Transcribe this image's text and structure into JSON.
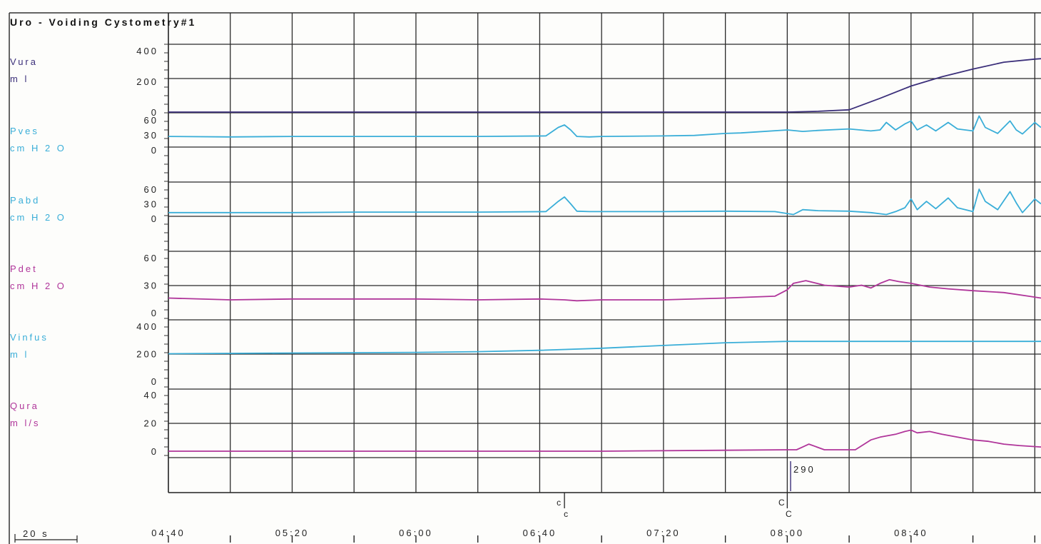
{
  "chart_data": {
    "type": "line",
    "title": "Uro - Voiding Cystometry#1",
    "time_scale_label": "20 s",
    "x_ticks": [
      "04:40",
      "05:20",
      "06:00",
      "06:40",
      "07:20",
      "08:00",
      "08:40"
    ],
    "xlim": [
      "04:40",
      "09:22"
    ],
    "grid": true,
    "markers": [
      {
        "time": "06:48",
        "labels": [
          "c",
          "c"
        ]
      },
      {
        "time": "08:00",
        "labels": [
          "C",
          "C"
        ]
      }
    ],
    "annotations": [
      {
        "time": "08:02",
        "text": "290"
      }
    ],
    "channels": [
      {
        "name": "Vura",
        "unit": "m l",
        "color": "#3b2f7a",
        "ylim": [
          0,
          400
        ],
        "ticks": [
          "400",
          "200",
          "0"
        ],
        "t": [
          "04:40",
          "08:00",
          "08:10",
          "08:20",
          "08:30",
          "08:40",
          "08:50",
          "09:00",
          "09:10",
          "09:20",
          "09:22"
        ],
        "values": [
          0,
          0,
          5,
          15,
          90,
          170,
          230,
          280,
          325,
          345,
          348
        ]
      },
      {
        "name": "Pves",
        "unit": "cm H 2 O",
        "color": "#3aaed8",
        "ylim": [
          0,
          60
        ],
        "ticks": [
          "60",
          "30",
          "0"
        ],
        "t": [
          "04:40",
          "05:00",
          "05:20",
          "05:40",
          "06:00",
          "06:20",
          "06:42",
          "06:46",
          "06:48",
          "06:50",
          "06:52",
          "06:56",
          "07:00",
          "07:20",
          "07:30",
          "07:40",
          "07:45",
          "07:50",
          "08:00",
          "08:05",
          "08:10",
          "08:20",
          "08:27",
          "08:30",
          "08:32",
          "08:35",
          "08:38",
          "08:40",
          "08:42",
          "08:45",
          "08:48",
          "08:52",
          "08:55",
          "09:00",
          "09:02",
          "09:04",
          "09:08",
          "09:12",
          "09:14",
          "09:16",
          "09:20",
          "09:22"
        ],
        "values": [
          27,
          26,
          27,
          27,
          27,
          27,
          28,
          45,
          50,
          40,
          27,
          26,
          27,
          28,
          29,
          33,
          34,
          36,
          40,
          37,
          39,
          42,
          38,
          40,
          55,
          40,
          52,
          58,
          40,
          50,
          38,
          55,
          42,
          38,
          68,
          45,
          33,
          58,
          40,
          32,
          55,
          45
        ]
      },
      {
        "name": "Pabd",
        "unit": "cm H 2 O",
        "color": "#3aaed8",
        "ylim": [
          0,
          60
        ],
        "ticks": [
          "60",
          "30",
          "0"
        ],
        "t": [
          "04:40",
          "05:00",
          "05:20",
          "05:40",
          "06:00",
          "06:20",
          "06:42",
          "06:46",
          "06:48",
          "06:50",
          "06:52",
          "06:56",
          "07:00",
          "07:20",
          "07:40",
          "07:56",
          "08:02",
          "08:05",
          "08:10",
          "08:20",
          "08:27",
          "08:32",
          "08:35",
          "08:38",
          "08:40",
          "08:42",
          "08:45",
          "08:48",
          "08:52",
          "08:55",
          "09:00",
          "09:02",
          "09:04",
          "09:08",
          "09:12",
          "09:14",
          "09:16",
          "09:20",
          "09:22"
        ],
        "values": [
          12,
          12,
          12,
          13,
          13,
          13,
          14,
          35,
          44,
          30,
          15,
          14,
          14,
          14,
          15,
          14,
          8,
          18,
          16,
          15,
          12,
          8,
          14,
          22,
          40,
          18,
          35,
          20,
          42,
          22,
          14,
          60,
          35,
          18,
          55,
          32,
          12,
          40,
          30
        ]
      },
      {
        "name": "Pdet",
        "unit": "cm H 2 O",
        "color": "#b0359a",
        "ylim": [
          0,
          60
        ],
        "ticks": [
          "60",
          "30",
          "0"
        ],
        "t": [
          "04:40",
          "05:00",
          "05:20",
          "05:40",
          "06:00",
          "06:20",
          "06:40",
          "06:48",
          "06:52",
          "07:00",
          "07:20",
          "07:40",
          "07:56",
          "08:00",
          "08:02",
          "08:06",
          "08:12",
          "08:20",
          "08:24",
          "08:27",
          "08:30",
          "08:33",
          "08:36",
          "08:40",
          "08:46",
          "08:52",
          "09:00",
          "09:10",
          "09:18",
          "09:22"
        ],
        "values": [
          16,
          14,
          15,
          15,
          15,
          14,
          15,
          14,
          13,
          14,
          14,
          16,
          18,
          25,
          32,
          35,
          30,
          28,
          30,
          27,
          32,
          36,
          34,
          32,
          28,
          26,
          24,
          22,
          18,
          16
        ]
      },
      {
        "name": "Vinfus",
        "unit": "m l",
        "color": "#3aaed8",
        "ylim": [
          0,
          400
        ],
        "ticks": [
          "400",
          "200",
          "0"
        ],
        "t": [
          "04:40",
          "05:20",
          "06:00",
          "06:20",
          "06:40",
          "07:00",
          "07:20",
          "07:40",
          "07:50",
          "08:00",
          "09:22"
        ],
        "values": [
          200,
          205,
          210,
          215,
          225,
          240,
          260,
          280,
          285,
          290,
          290
        ]
      },
      {
        "name": "Qura",
        "unit": "m l/s",
        "color": "#b0359a",
        "ylim": [
          0,
          40
        ],
        "ticks": [
          "40",
          "20",
          "0"
        ],
        "t": [
          "04:40",
          "06:00",
          "07:00",
          "08:00",
          "08:03",
          "08:05",
          "08:07",
          "08:12",
          "08:22",
          "08:27",
          "08:30",
          "08:35",
          "08:38",
          "08:40",
          "08:42",
          "08:46",
          "08:50",
          "08:55",
          "09:00",
          "09:05",
          "09:10",
          "09:15",
          "09:22"
        ],
        "values": [
          0,
          0,
          0,
          1,
          1,
          3,
          5,
          1,
          1,
          8,
          10,
          12,
          14,
          15,
          13,
          14,
          12,
          10,
          8,
          7,
          5,
          4,
          3
        ]
      }
    ]
  }
}
